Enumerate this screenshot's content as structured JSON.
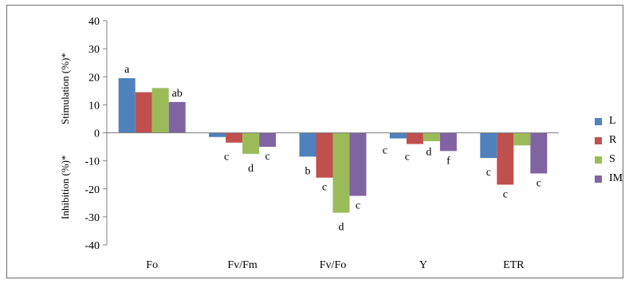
{
  "chart_data": {
    "type": "bar",
    "categories": [
      "Fo",
      "Fv/Fm",
      "Fv/Fo",
      "Y",
      "ETR"
    ],
    "series": [
      {
        "name": "L",
        "color": "#4f81bd",
        "values": [
          19.5,
          -1.5,
          -8.5,
          -2.0,
          -9.0
        ],
        "labels": [
          "a",
          "",
          "b",
          "c",
          "c"
        ]
      },
      {
        "name": "R",
        "color": "#c0504d",
        "values": [
          14.5,
          -3.5,
          -16.0,
          -4.0,
          -18.5
        ],
        "labels": [
          "",
          "c",
          "c",
          "c",
          "c"
        ]
      },
      {
        "name": "S",
        "color": "#9bbb59",
        "values": [
          16.0,
          -7.5,
          -28.5,
          -3.0,
          -4.5
        ],
        "labels": [
          "",
          "d",
          "d",
          "d",
          ""
        ]
      },
      {
        "name": "IM",
        "color": "#8064a2",
        "values": [
          11.0,
          -5.0,
          -22.5,
          -6.5,
          -14.5
        ],
        "labels": [
          "ab",
          "c",
          "c",
          "f",
          "c"
        ]
      }
    ],
    "ylim": [
      -40,
      40
    ],
    "yticks": [
      -40,
      -30,
      -20,
      -10,
      0,
      10,
      20,
      30,
      40
    ],
    "ylabel_upper": "Stimulation (%)*",
    "ylabel_lower": "Inhibition (%)*",
    "legend_position": "right",
    "grid": false
  }
}
